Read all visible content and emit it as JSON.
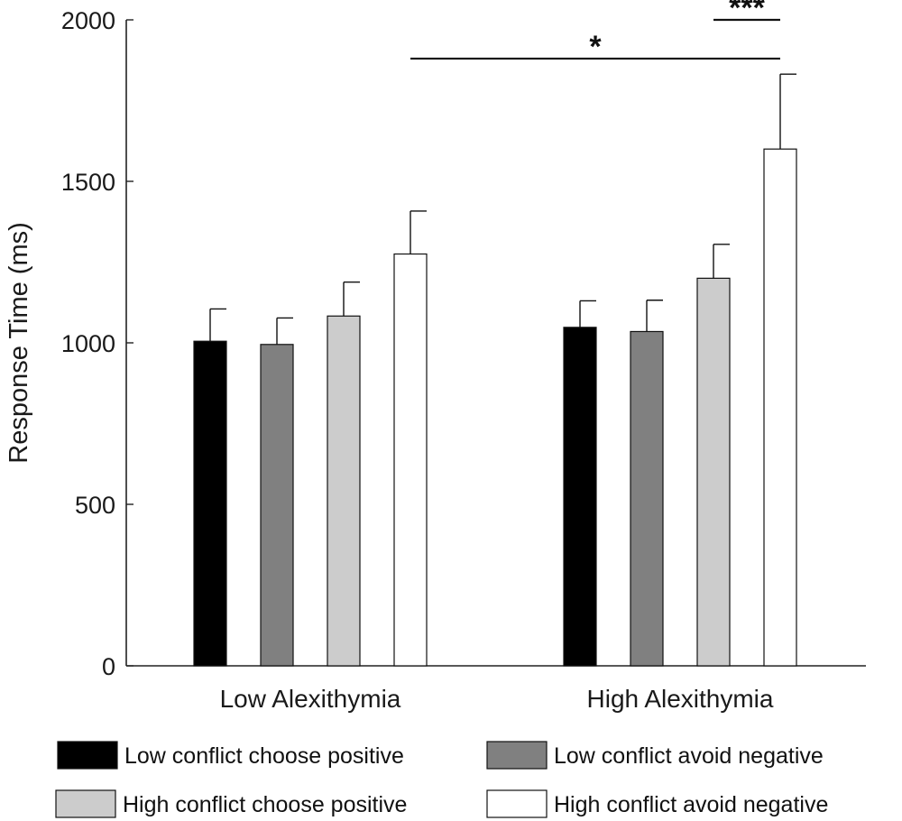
{
  "chart_data": {
    "type": "bar",
    "title": "",
    "xlabel": "",
    "ylabel": "Response Time (ms)",
    "ylim": [
      0,
      2000
    ],
    "yticks": [
      "0",
      "500",
      "1000",
      "1500",
      "2000"
    ],
    "grid": false,
    "categories": [
      "Low Alexithymia",
      "High Alexithymia"
    ],
    "series": [
      {
        "name": "Low conflict choose positive",
        "color": "#000000",
        "values": [
          1005,
          1048
        ],
        "errors": [
          100,
          82
        ]
      },
      {
        "name": "Low conflict avoid negative",
        "color": "#808080",
        "values": [
          995,
          1035
        ],
        "errors": [
          82,
          97
        ]
      },
      {
        "name": "High conflict choose positive",
        "color": "#cccccc",
        "values": [
          1083,
          1200
        ],
        "errors": [
          105,
          105
        ]
      },
      {
        "name": "High conflict avoid negative",
        "color": "#ffffff",
        "values": [
          1275,
          1600
        ],
        "errors": [
          133,
          232
        ]
      }
    ],
    "significance": [
      {
        "label": "*",
        "from": {
          "category": 0,
          "series": 3
        },
        "to": {
          "category": 1,
          "series": 3
        },
        "level": 1880
      },
      {
        "label": "***",
        "from": {
          "category": 1,
          "series": 2
        },
        "to": {
          "category": 1,
          "series": 3
        },
        "level": 2000
      }
    ],
    "legend_position": "bottom"
  }
}
